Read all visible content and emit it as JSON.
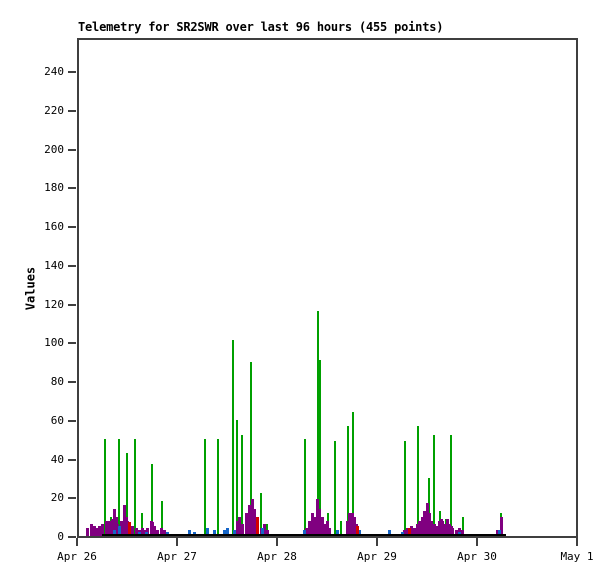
{
  "title": "Telemetry for SR2SWR over last 96 hours (455 points)",
  "ylabel": "Values",
  "colors": {
    "background": "#ffffff",
    "border": "#3f3f3f",
    "text": "#000000",
    "series_green": "#00a000",
    "series_purple": "#800080",
    "series_blue": "#1565c8",
    "series_red": "#d40000",
    "series_black": "#000000"
  },
  "chart_data": {
    "type": "bar",
    "title": "Telemetry for SR2SWR over last 96 hours (455 points)",
    "xlabel": "",
    "ylabel": "Values",
    "x_unit": "hours since Apr 26 00:00",
    "xlim_hours": [
      0,
      120
    ],
    "ylim": [
      0,
      256
    ],
    "grid": false,
    "legend": "none",
    "y_ticks": [
      0,
      20,
      40,
      60,
      80,
      100,
      120,
      140,
      160,
      180,
      200,
      220,
      240
    ],
    "x_ticks": [
      {
        "label": "Apr 26",
        "hours": 0
      },
      {
        "label": "Apr 27",
        "hours": 24
      },
      {
        "label": "Apr 28",
        "hours": 48
      },
      {
        "label": "Apr 29",
        "hours": 72
      },
      {
        "label": "Apr 30",
        "hours": 96
      },
      {
        "label": "May 1",
        "hours": 120
      }
    ],
    "series": [
      {
        "name": "green",
        "color": "#00a000",
        "width": 2,
        "z": 1,
        "points": [
          [
            6.7,
            50
          ],
          [
            8.2,
            10
          ],
          [
            10.1,
            50
          ],
          [
            12.0,
            43
          ],
          [
            13.9,
            50
          ],
          [
            15.6,
            12
          ],
          [
            18.0,
            37
          ],
          [
            20.4,
            18
          ],
          [
            30.7,
            50
          ],
          [
            33.8,
            50
          ],
          [
            37.4,
            101
          ],
          [
            38.4,
            60
          ],
          [
            39.6,
            52
          ],
          [
            41.8,
            90
          ],
          [
            44.2,
            22
          ],
          [
            45.6,
            6
          ],
          [
            54.7,
            50
          ],
          [
            57.8,
            116
          ],
          [
            58.3,
            91
          ],
          [
            60.2,
            12
          ],
          [
            61.9,
            49
          ],
          [
            63.4,
            8
          ],
          [
            65.0,
            57
          ],
          [
            66.2,
            64
          ],
          [
            78.7,
            49
          ],
          [
            81.8,
            57
          ],
          [
            84.5,
            30
          ],
          [
            85.7,
            52
          ],
          [
            87.1,
            13
          ],
          [
            88.6,
            9
          ],
          [
            89.8,
            52
          ],
          [
            92.6,
            10
          ],
          [
            101.8,
            12
          ]
        ]
      },
      {
        "name": "purple",
        "color": "#800080",
        "width": 3,
        "z": 2,
        "points": [
          [
            2.6,
            4
          ],
          [
            3.4,
            6
          ],
          [
            4.1,
            5
          ],
          [
            4.8,
            4
          ],
          [
            5.5,
            5
          ],
          [
            6.2,
            6
          ],
          [
            7.0,
            8
          ],
          [
            7.7,
            8
          ],
          [
            8.4,
            9
          ],
          [
            8.9,
            14
          ],
          [
            9.4,
            10
          ],
          [
            9.8,
            6
          ],
          [
            10.6,
            8
          ],
          [
            11.3,
            16
          ],
          [
            11.8,
            10
          ],
          [
            12.2,
            8
          ],
          [
            12.7,
            5
          ],
          [
            13.4,
            5
          ],
          [
            14.2,
            4
          ],
          [
            14.9,
            3
          ],
          [
            15.6,
            4
          ],
          [
            16.3,
            3
          ],
          [
            17.0,
            4
          ],
          [
            17.8,
            8
          ],
          [
            18.2,
            7
          ],
          [
            18.7,
            5
          ],
          [
            19.4,
            3
          ],
          [
            20.2,
            4
          ],
          [
            20.9,
            3
          ],
          [
            38.4,
            8
          ],
          [
            39.1,
            10
          ],
          [
            39.8,
            6
          ],
          [
            40.6,
            12
          ],
          [
            41.3,
            16
          ],
          [
            42.0,
            19
          ],
          [
            42.5,
            14
          ],
          [
            43.0,
            10
          ],
          [
            43.4,
            6
          ],
          [
            44.2,
            4
          ],
          [
            44.9,
            6
          ],
          [
            45.6,
            3
          ],
          [
            55.0,
            4
          ],
          [
            55.7,
            8
          ],
          [
            56.4,
            12
          ],
          [
            57.1,
            10
          ],
          [
            57.8,
            19
          ],
          [
            58.3,
            14
          ],
          [
            58.8,
            10
          ],
          [
            59.3,
            6
          ],
          [
            60.0,
            8
          ],
          [
            60.7,
            4
          ],
          [
            64.8,
            8
          ],
          [
            65.5,
            12
          ],
          [
            66.0,
            12
          ],
          [
            66.5,
            10
          ],
          [
            67.0,
            6
          ],
          [
            67.4,
            4
          ],
          [
            78.7,
            3
          ],
          [
            79.4,
            4
          ],
          [
            80.2,
            5
          ],
          [
            80.9,
            4
          ],
          [
            81.6,
            6
          ],
          [
            82.3,
            8
          ],
          [
            83.0,
            10
          ],
          [
            83.5,
            13
          ],
          [
            84.0,
            17
          ],
          [
            84.5,
            12
          ],
          [
            85.0,
            8
          ],
          [
            85.7,
            6
          ],
          [
            86.4,
            5
          ],
          [
            86.9,
            8
          ],
          [
            87.4,
            9
          ],
          [
            87.8,
            8
          ],
          [
            88.3,
            6
          ],
          [
            88.8,
            9
          ],
          [
            89.3,
            6
          ],
          [
            89.8,
            5
          ],
          [
            90.2,
            4
          ],
          [
            91.0,
            3
          ],
          [
            91.7,
            4
          ],
          [
            92.4,
            3
          ],
          [
            101.0,
            3
          ],
          [
            101.8,
            10
          ]
        ]
      },
      {
        "name": "blue",
        "color": "#1565c8",
        "width": 3,
        "z": 3,
        "points": [
          [
            9.1,
            3
          ],
          [
            10.3,
            5
          ],
          [
            14.9,
            2
          ],
          [
            16.6,
            2
          ],
          [
            21.6,
            2
          ],
          [
            27.1,
            3
          ],
          [
            28.3,
            2
          ],
          [
            31.4,
            4
          ],
          [
            33.1,
            3
          ],
          [
            35.3,
            3
          ],
          [
            36.2,
            4
          ],
          [
            37.9,
            3
          ],
          [
            44.4,
            4
          ],
          [
            54.5,
            3
          ],
          [
            62.6,
            3
          ],
          [
            67.9,
            3
          ],
          [
            75.1,
            3
          ],
          [
            78.2,
            2
          ],
          [
            91.9,
            2
          ],
          [
            101.3,
            3
          ]
        ]
      },
      {
        "name": "red",
        "color": "#d40000",
        "width": 3,
        "z": 4,
        "points": [
          [
            12.7,
            7
          ],
          [
            43.2,
            10
          ],
          [
            67.4,
            5
          ],
          [
            79.9,
            4
          ]
        ]
      },
      {
        "name": "baseline-band",
        "color": "#000000",
        "type": "band",
        "z": 5,
        "from_hours": 6.0,
        "to_hours": 103.0,
        "value": 1
      }
    ]
  }
}
